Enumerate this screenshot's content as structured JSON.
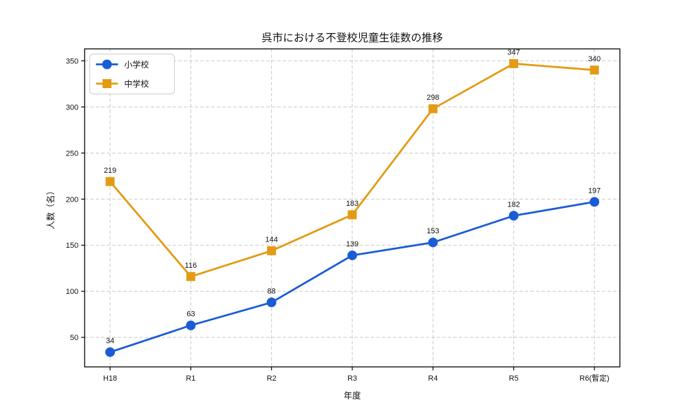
{
  "chart_data": {
    "type": "line",
    "title": "呉市における不登校児童生徒数の推移",
    "xlabel": "年度",
    "ylabel": "人数（名）",
    "categories": [
      "H18",
      "R1",
      "R2",
      "R3",
      "R4",
      "R5",
      "R6(暫定)"
    ],
    "series": [
      {
        "name": "小学校",
        "color": "#1a5cd6",
        "marker": "circle",
        "values": [
          34,
          63,
          88,
          139,
          153,
          182,
          197
        ]
      },
      {
        "name": "中学校",
        "color": "#e39b14",
        "marker": "square",
        "values": [
          219,
          116,
          144,
          183,
          298,
          347,
          340
        ]
      }
    ],
    "yticks": [
      50,
      100,
      150,
      200,
      250,
      300,
      350
    ],
    "ylim": [
      18,
      363
    ],
    "grid": true,
    "grid_style": "dashed",
    "grid_color": "#c9c9c9",
    "legend_position": "upper left",
    "data_labels": true,
    "spine_color": "#000000"
  }
}
